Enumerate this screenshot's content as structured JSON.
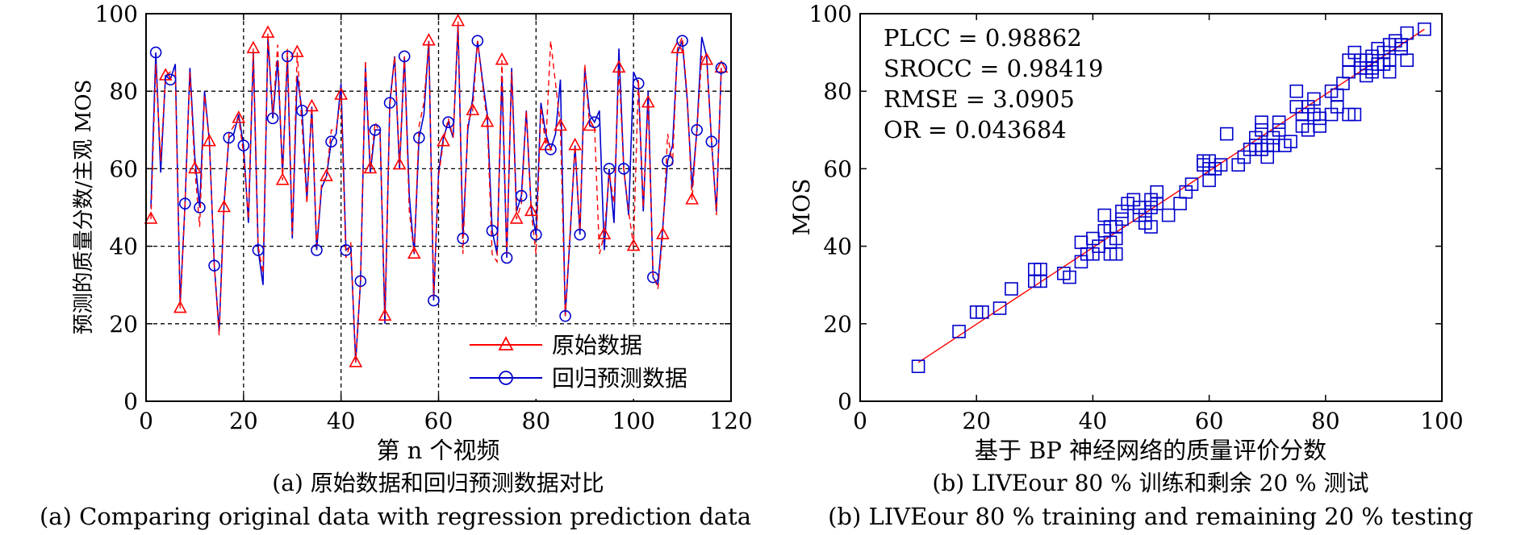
{
  "chart_data": [
    {
      "type": "line",
      "xlabel": "第 n 个视频",
      "ylabel": "预测的质量分数/主观 MOS",
      "xlim": [
        0,
        120
      ],
      "ylim": [
        0,
        100
      ],
      "xticks": [
        0,
        20,
        40,
        60,
        80,
        100,
        120
      ],
      "yticks": [
        0,
        20,
        40,
        60,
        80,
        100
      ],
      "grid": "dashed",
      "legend": "bottom-right",
      "caption_cn": "(a) 原始数据和回归预测数据对比",
      "caption_en": "(a) Comparing original data with regression prediction data",
      "series": [
        {
          "name": "原始数据",
          "color": "#ff0000",
          "marker": "triangle",
          "values": [
            47,
            87,
            62,
            84,
            85,
            85,
            24,
            51,
            85,
            60,
            45,
            79,
            67,
            35,
            17,
            50,
            69,
            71,
            73,
            64,
            47,
            91,
            40,
            33,
            95,
            74,
            92,
            57,
            91,
            43,
            90,
            71,
            51,
            76,
            40,
            56,
            58,
            70,
            70,
            79,
            37,
            41,
            10,
            31,
            88,
            60,
            72,
            69,
            22,
            76,
            89,
            61,
            89,
            49,
            38,
            71,
            77,
            93,
            27,
            58,
            67,
            73,
            68,
            98,
            38,
            72,
            75,
            93,
            82,
            72,
            38,
            36,
            88,
            38,
            85,
            47,
            51,
            75,
            49,
            38,
            76,
            66,
            93,
            82,
            71,
            22,
            44,
            66,
            44,
            87,
            71,
            71,
            38,
            43,
            59,
            51,
            86,
            60,
            49,
            40,
            83,
            50,
            77,
            33,
            29,
            43,
            69,
            61,
            91,
            94,
            79,
            52,
            70,
            89,
            88,
            67,
            48,
            86
          ],
          "legend_label": "原始数据"
        },
        {
          "name": "回归预测数据",
          "color": "#0000cc",
          "marker": "circle",
          "values": [
            50,
            90,
            59,
            84,
            83,
            87,
            25,
            51,
            86,
            63,
            50,
            80,
            67,
            35,
            18,
            51,
            68,
            69,
            74,
            66,
            46,
            90,
            39,
            30,
            94,
            73,
            88,
            59,
            89,
            42,
            84,
            75,
            52,
            76,
            39,
            55,
            58,
            67,
            69,
            82,
            39,
            40,
            10,
            31,
            86,
            59,
            70,
            70,
            20,
            77,
            89,
            60,
            89,
            53,
            38,
            68,
            74,
            93,
            26,
            59,
            68,
            72,
            68,
            97,
            42,
            70,
            78,
            93,
            83,
            74,
            44,
            38,
            84,
            37,
            86,
            49,
            53,
            75,
            50,
            43,
            77,
            69,
            65,
            69,
            83,
            22,
            43,
            66,
            43,
            86,
            74,
            72,
            75,
            39,
            60,
            46,
            91,
            60,
            48,
            85,
            82,
            49,
            80,
            32,
            30,
            45,
            62,
            66,
            90,
            93,
            78,
            55,
            70,
            94,
            89,
            67,
            49,
            86
          ],
          "legend_label": "回归预测数据"
        }
      ]
    },
    {
      "type": "scatter",
      "xlabel": "基于 BP 神经网络的质量评价分数",
      "ylabel": "MOS",
      "xlim": [
        0,
        100
      ],
      "ylim": [
        0,
        100
      ],
      "xticks": [
        0,
        20,
        40,
        60,
        80,
        100
      ],
      "yticks": [
        0,
        20,
        40,
        60,
        80,
        100
      ],
      "grid": false,
      "marker": "square",
      "color": "#0000cc",
      "fit_line": {
        "color": "#ff0000",
        "x": [
          10,
          97
        ],
        "y": [
          10,
          96
        ]
      },
      "caption_cn": "(b) LIVEour 80 % 训练和剩余 20 % 测试",
      "caption_en": "(b) LIVEour 80 % training and remaining 20 % testing",
      "annotations": [
        "PLCC = 0.98862",
        "SROCC = 0.98419",
        "RMSE = 3.0905",
        "OR = 0.043684"
      ],
      "points": [
        [
          10,
          9
        ],
        [
          17,
          18
        ],
        [
          20,
          23
        ],
        [
          21,
          23
        ],
        [
          24,
          24
        ],
        [
          26,
          29
        ],
        [
          30,
          31
        ],
        [
          30,
          34
        ],
        [
          31,
          31
        ],
        [
          31,
          34
        ],
        [
          35,
          33
        ],
        [
          36,
          32
        ],
        [
          38,
          36
        ],
        [
          38,
          41
        ],
        [
          39,
          38
        ],
        [
          40,
          38
        ],
        [
          40,
          42
        ],
        [
          41,
          40
        ],
        [
          42,
          44
        ],
        [
          42,
          48
        ],
        [
          43,
          38
        ],
        [
          43,
          41
        ],
        [
          43,
          45
        ],
        [
          44,
          38
        ],
        [
          44,
          42
        ],
        [
          44,
          45
        ],
        [
          45,
          47
        ],
        [
          45,
          49
        ],
        [
          46,
          51
        ],
        [
          47,
          52
        ],
        [
          48,
          48
        ],
        [
          48,
          50
        ],
        [
          49,
          46
        ],
        [
          49,
          48
        ],
        [
          50,
          45
        ],
        [
          50,
          50
        ],
        [
          50,
          52
        ],
        [
          51,
          51
        ],
        [
          51,
          54
        ],
        [
          53,
          48
        ],
        [
          55,
          51
        ],
        [
          56,
          54
        ],
        [
          57,
          56
        ],
        [
          59,
          61
        ],
        [
          59,
          62
        ],
        [
          60,
          57
        ],
        [
          60,
          60
        ],
        [
          60,
          62
        ],
        [
          61,
          60
        ],
        [
          62,
          61
        ],
        [
          63,
          69
        ],
        [
          65,
          61
        ],
        [
          66,
          63
        ],
        [
          67,
          65
        ],
        [
          68,
          66
        ],
        [
          68,
          68
        ],
        [
          69,
          65
        ],
        [
          69,
          70
        ],
        [
          69,
          72
        ],
        [
          70,
          66
        ],
        [
          70,
          63
        ],
        [
          71,
          66
        ],
        [
          71,
          68
        ],
        [
          72,
          70
        ],
        [
          72,
          72
        ],
        [
          73,
          66
        ],
        [
          74,
          67
        ],
        [
          75,
          76
        ],
        [
          75,
          80
        ],
        [
          76,
          71
        ],
        [
          76,
          74
        ],
        [
          77,
          70
        ],
        [
          77,
          76
        ],
        [
          78,
          74
        ],
        [
          78,
          78
        ],
        [
          79,
          71
        ],
        [
          79,
          73
        ],
        [
          81,
          74
        ],
        [
          81,
          80
        ],
        [
          82,
          76
        ],
        [
          82,
          79
        ],
        [
          83,
          82
        ],
        [
          84,
          85
        ],
        [
          84,
          88
        ],
        [
          84,
          74
        ],
        [
          85,
          74
        ],
        [
          85,
          90
        ],
        [
          86,
          86
        ],
        [
          86,
          88
        ],
        [
          87,
          84
        ],
        [
          87,
          86
        ],
        [
          87,
          88
        ],
        [
          88,
          86
        ],
        [
          88,
          89
        ],
        [
          88,
          85
        ],
        [
          89,
          87
        ],
        [
          89,
          91
        ],
        [
          90,
          87
        ],
        [
          90,
          90
        ],
        [
          91,
          85
        ],
        [
          91,
          88
        ],
        [
          91,
          92
        ],
        [
          92,
          93
        ],
        [
          93,
          91
        ],
        [
          93,
          92
        ],
        [
          94,
          88
        ],
        [
          94,
          95
        ],
        [
          97,
          96
        ]
      ]
    }
  ]
}
